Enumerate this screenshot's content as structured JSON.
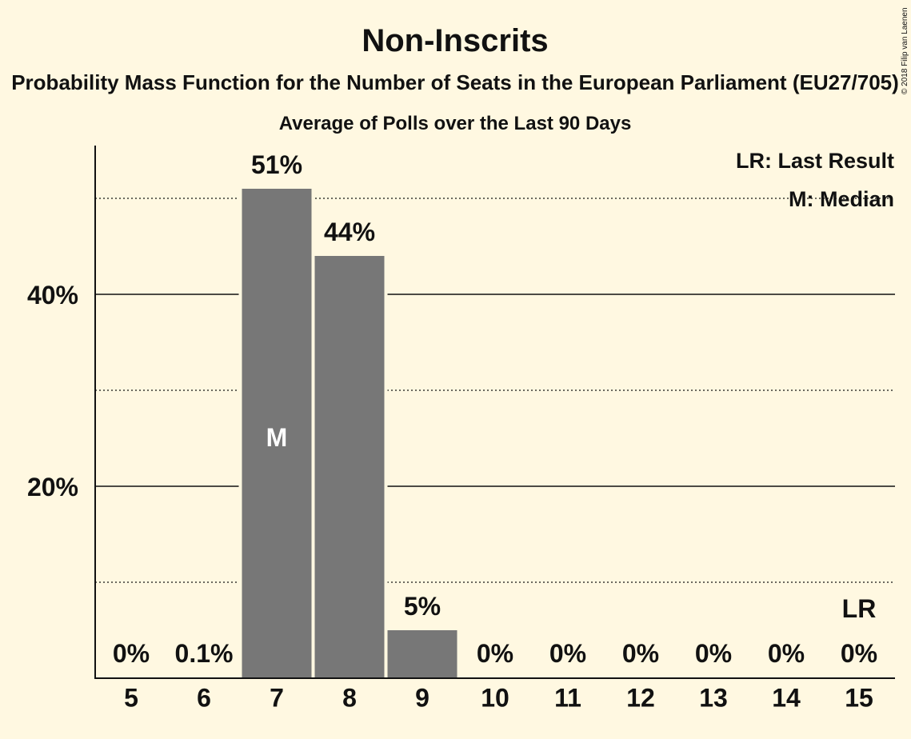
{
  "chart_data": {
    "type": "bar",
    "title": "Non-Inscrits",
    "subtitle": "Probability Mass Function for the Number of Seats in the European Parliament (EU27/705)",
    "subtitle2": "Average of Polls over the Last 90 Days",
    "categories": [
      "5",
      "6",
      "7",
      "8",
      "9",
      "10",
      "11",
      "12",
      "13",
      "14",
      "15"
    ],
    "values": [
      0,
      0.1,
      51,
      44,
      5,
      0,
      0,
      0,
      0,
      0,
      0
    ],
    "value_labels": [
      "0%",
      "0.1%",
      "51%",
      "44%",
      "5%",
      "0%",
      "0%",
      "0%",
      "0%",
      "0%",
      "0%"
    ],
    "ylim": [
      0,
      55.5
    ],
    "yticks": [
      {
        "value": 20,
        "label": "20%"
      },
      {
        "value": 40,
        "label": "40%"
      }
    ],
    "minor_gridlines": [
      10,
      30,
      50
    ],
    "median_category": "7",
    "median_marker": "M",
    "last_result_category": "15",
    "last_result_marker": "LR",
    "legend": {
      "position": "top-right",
      "last_result": "LR: Last Result",
      "median": "M: Median"
    },
    "copyright": "© 2018 Filip van Laenen",
    "colors": {
      "background": "#fff8e1",
      "bar": "#777777",
      "text": "#111111"
    }
  }
}
